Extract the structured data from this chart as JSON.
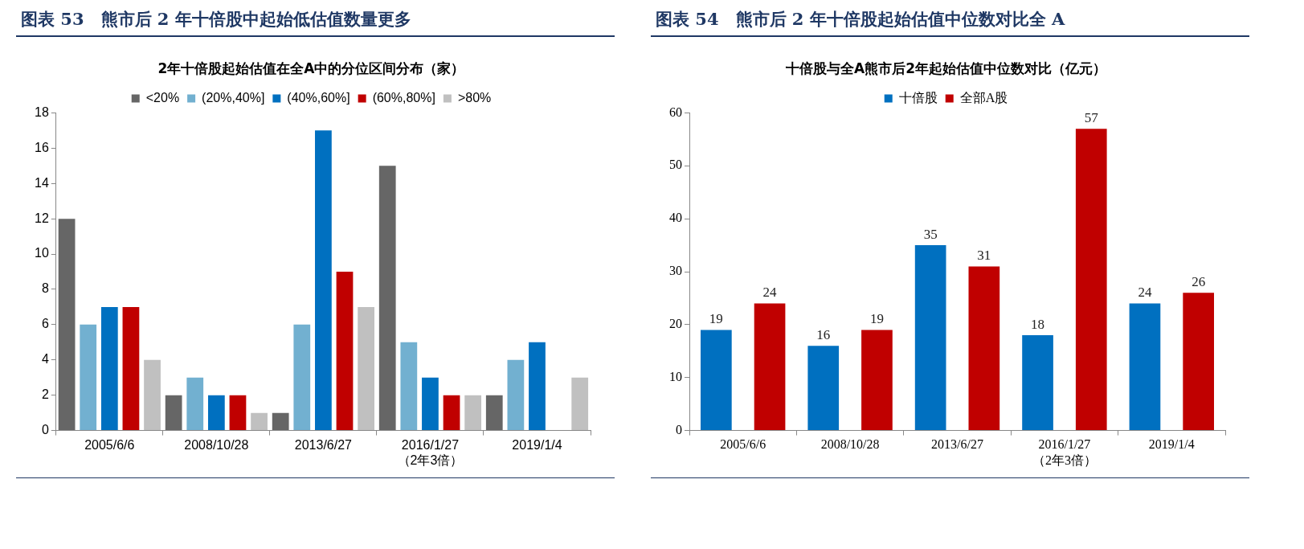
{
  "chart_data": [
    {
      "type": "bar",
      "title": "图表 53　熊市后 2 年十倍股中起始低估值数量更多",
      "subtitle": "2年十倍股起始估值在全A中的分位区间分布（家）",
      "categories": [
        "2005/6/6",
        "2008/10/28",
        "2013/6/27",
        "2016/1/27\n（2年3倍）",
        "2019/1/4"
      ],
      "series": [
        {
          "name": "<20%",
          "color": "#666666",
          "values": [
            12,
            2,
            1,
            15,
            2
          ]
        },
        {
          "name": "(20%,40%]",
          "color": "#72b0d0",
          "values": [
            6,
            3,
            6,
            5,
            4
          ]
        },
        {
          "name": "(40%,60%]",
          "color": "#0070c0",
          "values": [
            7,
            2,
            17,
            3,
            5
          ]
        },
        {
          "name": "(60%,80%]",
          "color": "#c00000",
          "values": [
            7,
            2,
            9,
            2,
            0
          ]
        },
        {
          "name": ">80%",
          "color": "#c0c0c0",
          "values": [
            4,
            1,
            7,
            2,
            3
          ]
        }
      ],
      "ylim": [
        0,
        18
      ],
      "yticks": [
        0,
        2,
        4,
        6,
        8,
        10,
        12,
        14,
        16,
        18
      ],
      "grid": false,
      "legend": "top"
    },
    {
      "type": "bar",
      "title": "图表 54　熊市后 2 年十倍股起始估值中位数对比全 A",
      "subtitle": "十倍股与全A熊市后2年起始估值中位数对比（亿元）",
      "categories": [
        "2005/6/6",
        "2008/10/28",
        "2013/6/27",
        "2016/1/27\n（2年3倍）",
        "2019/1/4"
      ],
      "series": [
        {
          "name": "十倍股",
          "color": "#0070c0",
          "values": [
            19,
            16,
            35,
            18,
            24
          ]
        },
        {
          "name": "全部A股",
          "color": "#c00000",
          "values": [
            24,
            19,
            31,
            57,
            26
          ]
        }
      ],
      "ylim": [
        0,
        60
      ],
      "yticks": [
        0,
        10,
        20,
        30,
        40,
        50,
        60
      ],
      "grid": false,
      "legend": "top",
      "data_labels": true
    }
  ]
}
